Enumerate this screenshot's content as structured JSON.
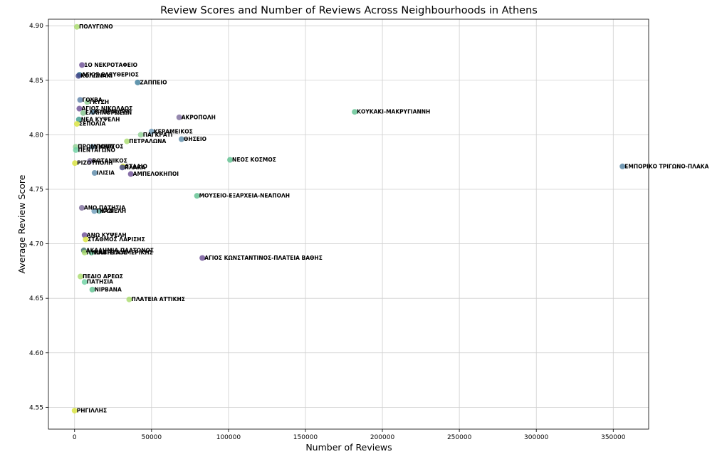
{
  "chart_data": {
    "type": "scatter",
    "title": "Review Scores and Number of Reviews Across Neighbourhoods in Athens",
    "xlabel": "Number of Reviews",
    "ylabel": "Average Review Score",
    "xlim": [
      -17000,
      373000
    ],
    "ylim": [
      4.53,
      4.906
    ],
    "xticks": [
      0,
      50000,
      100000,
      150000,
      200000,
      250000,
      300000,
      350000
    ],
    "yticks": [
      4.55,
      4.6,
      4.65,
      4.7,
      4.75,
      4.8,
      4.85,
      4.9
    ],
    "xtick_labels": [
      "0",
      "50000",
      "100000",
      "150000",
      "200000",
      "250000",
      "300000",
      "350000"
    ],
    "ytick_labels": [
      "4.55",
      "4.60",
      "4.65",
      "4.70",
      "4.75",
      "4.80",
      "4.85",
      "4.90"
    ],
    "grid": true,
    "colormap": "viridis",
    "points": [
      {
        "label": "ΠΟΛΥΓΩΝΟ",
        "x": 1500,
        "y": 4.899,
        "color": "#a8db6a"
      },
      {
        "label": "1Ο ΝΕΚΡΟΤΑΦΕΙΟ",
        "x": 4800,
        "y": 4.864,
        "color": "#6a4c93"
      },
      {
        "label": "ΑΓΙΟΣ ΕΛΕΥΘΕΡΙΟΣ",
        "x": 3200,
        "y": 4.855,
        "color": "#2a788e"
      },
      {
        "label": "ΚΟΛΩΝΑΚΙ",
        "x": 2500,
        "y": 4.854,
        "color": "#414487"
      },
      {
        "label": "ΖΑΠΠΕΙΟ",
        "x": 41000,
        "y": 4.848,
        "color": "#3b7c9a"
      },
      {
        "label": "ΓΟΥΒΑ",
        "x": 3600,
        "y": 4.832,
        "color": "#5a80a8"
      },
      {
        "label": "ΓΚΥΖΗ",
        "x": 8200,
        "y": 4.83,
        "color": "#90d093"
      },
      {
        "label": "ΑΓΙΟΣ ΝΙΚΟΛΑΟΣ",
        "x": 3100,
        "y": 4.824,
        "color": "#6a4c93"
      },
      {
        "label": "ΕΛΛΗΝΟΡΩΣΩΝ",
        "x": 5600,
        "y": 4.82,
        "color": "#80c08a"
      },
      {
        "label": "ΚΥΠΡΙΑΔΟΥ",
        "x": 11800,
        "y": 4.821,
        "color": "#5080a0"
      },
      {
        "label": "ΚΟΥΚΑΚΙ-ΜΑΚΡΥΓΙΑΝΝΗ",
        "x": 182000,
        "y": 4.821,
        "color": "#5cc08e"
      },
      {
        "label": "ΑΚΡΟΠΟΛΗ",
        "x": 68000,
        "y": 4.816,
        "color": "#7a6a9a"
      },
      {
        "label": "ΝΕΑ ΚΥΨΕΛΗ",
        "x": 2800,
        "y": 4.814,
        "color": "#3a9a8a"
      },
      {
        "label": "ΣΕΠΟΛΙΑ",
        "x": 1500,
        "y": 4.81,
        "color": "#d8e23a"
      },
      {
        "label": "ΚΕΡΑΜΕΙΚΟΣ",
        "x": 50000,
        "y": 4.803,
        "color": "#6a9ab8"
      },
      {
        "label": "ΠΑΓΚΡΑΤΙ",
        "x": 43000,
        "y": 4.8,
        "color": "#90d093"
      },
      {
        "label": "ΘΗΣΕΙΟ",
        "x": 69500,
        "y": 4.796,
        "color": "#5a8aa8"
      },
      {
        "label": "ΠΕΤΡΑΛΩΝΑ",
        "x": 34000,
        "y": 4.794,
        "color": "#a8db6a"
      },
      {
        "label": "ΠΡΟΜΠΟΝΑ",
        "x": 700,
        "y": 4.789,
        "color": "#90d093"
      },
      {
        "label": "ΥΜΗΤΤΟΣ",
        "x": 11500,
        "y": 4.789,
        "color": "#6a9ab8"
      },
      {
        "label": "ΠΕΝΤΑΓΩΝΟ",
        "x": 800,
        "y": 4.786,
        "color": "#6ad0a0"
      },
      {
        "label": "ΝΕΟΣ ΚΟΣΜΟΣ",
        "x": 101000,
        "y": 4.777,
        "color": "#5cc08e"
      },
      {
        "label": "ΒΟΤΑΝΙΚΟΣ",
        "x": 10000,
        "y": 4.776,
        "color": "#7a6a9a"
      },
      {
        "label": "ΡΙΖΟΥΠΟΛΗ",
        "x": 200,
        "y": 4.774,
        "color": "#d8e23a"
      },
      {
        "label": "ΣΤΑΔΙΟ",
        "x": 31500,
        "y": 4.771,
        "color": "#d8e23a"
      },
      {
        "label": "ΠΛΑΚΑ",
        "x": 31000,
        "y": 4.77,
        "color": "#414487"
      },
      {
        "label": "ΕΜΠΟΡΙΚΟ ΤΡΙΓΩΝΟ-ΠΛΑΚΑ",
        "x": 356000,
        "y": 4.771,
        "color": "#5080a0"
      },
      {
        "label": "ΙΛΙΣΙΑ",
        "x": 13000,
        "y": 4.765,
        "color": "#5a88a8"
      },
      {
        "label": "ΑΜΠΕΛΟΚΗΠΟΙ",
        "x": 36500,
        "y": 4.764,
        "color": "#6a4c93"
      },
      {
        "label": "ΜΟΥΣΕΙΟ-ΕΞΑΡΧΕΙΑ-ΝΕΑΠΟΛΗ",
        "x": 79500,
        "y": 4.744,
        "color": "#5cc08e"
      },
      {
        "label": "ΑΝΩ ΠΑΤΗΣΙΑ",
        "x": 4700,
        "y": 4.733,
        "color": "#7a6a9a"
      },
      {
        "label": "ΓΚΑΖΙ",
        "x": 12800,
        "y": 4.73,
        "color": "#6a9ab8"
      },
      {
        "label": "ΚΥΨΕΛΗ",
        "x": 16000,
        "y": 4.73,
        "color": "#5aa898"
      },
      {
        "label": "ΑΝΩ ΚΥΨΕΛΗ",
        "x": 6500,
        "y": 4.708,
        "color": "#6a4c93"
      },
      {
        "label": "ΣΤΑΘΜΟΣ ΛΑΡΙΣΗΣ",
        "x": 7200,
        "y": 4.704,
        "color": "#d8e23a"
      },
      {
        "label": "ΑΚΑΔΗΜΙΑ ΠΛΑΤΩΝΟΣ",
        "x": 6000,
        "y": 4.694,
        "color": "#3a6a60"
      },
      {
        "label": "ΠΛΑΤΕΙΑ ΑΜΕΡΙΚΗΣ",
        "x": 11000,
        "y": 4.692,
        "color": "#5cc08e"
      },
      {
        "label": "ΛΥΚΑΒΗΤΤΟΣ",
        "x": 6500,
        "y": 4.692,
        "color": "#a8db6a"
      },
      {
        "label": "ΑΓΙΟΣ ΚΩΝΣΤΑΝΤΙΝΟΣ-ΠΛΑΤΕΙΑ ΒΑΘΗΣ",
        "x": 83000,
        "y": 4.687,
        "color": "#6a4c93"
      },
      {
        "label": "ΠΕΔΙΟ ΑΡΕΩΣ",
        "x": 3800,
        "y": 4.67,
        "color": "#a8db6a"
      },
      {
        "label": "ΠΑΤΗΣΙΑ",
        "x": 6500,
        "y": 4.665,
        "color": "#6ad0a0"
      },
      {
        "label": "ΝΙΡΒΑΝΑ",
        "x": 11500,
        "y": 4.658,
        "color": "#5cc08e"
      },
      {
        "label": "ΠΛΑΤΕΙΑ ΑΤΤΙΚΗΣ",
        "x": 35500,
        "y": 4.649,
        "color": "#a8db6a"
      },
      {
        "label": "ΡΗΓΙΛΛΗΣ",
        "x": 0,
        "y": 4.547,
        "color": "#d8e23a"
      }
    ]
  }
}
